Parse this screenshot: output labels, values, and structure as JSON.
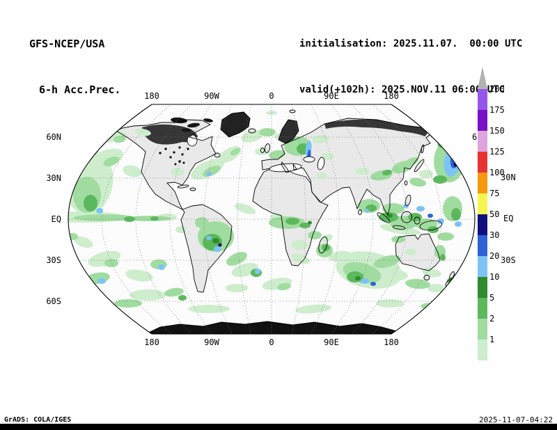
{
  "header": {
    "title_line1": "GFS-NCEP/USA",
    "title_line2": "6-h Acc.Prec.",
    "init_line": "initialisation: 2025.11.07.  00:00 UTC",
    "valid_line": "valid(+102h): 2025.NOV.11 06:00 UTC"
  },
  "map": {
    "axis_top": [
      "180",
      "90W",
      "0",
      "90E",
      "180"
    ],
    "axis_bottom": [
      "180",
      "90W",
      "0",
      "90E",
      "180"
    ],
    "axis_left": [
      "60N",
      "30N",
      "EQ",
      "30S",
      "60S"
    ],
    "axis_right": [
      "6",
      "30N",
      "EQ",
      "30S"
    ]
  },
  "colorbar": {
    "cap_color": "#b2b2b2",
    "levels": [
      "200",
      "175",
      "150",
      "125",
      "100",
      "75",
      "50",
      "30",
      "20",
      "10",
      "5",
      "2",
      "1"
    ],
    "segment_colors_top_to_bottom": [
      "#9457eb",
      "#7a0fc8",
      "#dda4dd",
      "#e63232",
      "#f59a0f",
      "#f5f550",
      "#10107d",
      "#2f62d6",
      "#7cc4f5",
      "#2e8b2e",
      "#5cb85c",
      "#a0dca0",
      "#cdedcd"
    ]
  },
  "footer": {
    "credit": "GrADS: COLA/IGES",
    "timestamp": "2025-11-07-04:22"
  },
  "chart_data": {
    "type": "heatmap",
    "title": "GFS-NCEP/USA 6-h Acc.Prec.",
    "initialisation": "2025.11.07. 00:00 UTC",
    "valid": "(+102h) 2025.NOV.11 06:00 UTC",
    "projection": "robinson-world-map",
    "x_ticks": [
      "180",
      "90W",
      "0",
      "90E",
      "180"
    ],
    "y_ticks": [
      "60N",
      "30N",
      "EQ",
      "30S",
      "60S"
    ],
    "colorbar_levels": [
      1,
      2,
      5,
      10,
      20,
      30,
      50,
      75,
      100,
      125,
      150,
      175,
      200
    ],
    "colorbar_colors_low_to_high": [
      "#cdedcd",
      "#a0dca0",
      "#5cb85c",
      "#2e8b2e",
      "#7cc4f5",
      "#2f62d6",
      "#10107d",
      "#f5f550",
      "#f59a0f",
      "#e63232",
      "#dda4dd",
      "#7a0fc8",
      "#9457eb",
      "#b2b2b2"
    ],
    "field": "6-hour accumulated precipitation shading over world map",
    "legend_position": "right"
  }
}
